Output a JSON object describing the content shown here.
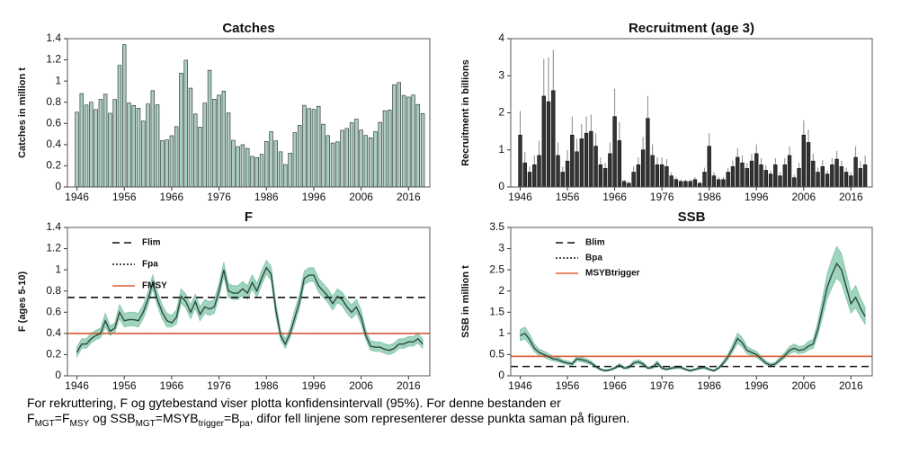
{
  "chart_data": [
    {
      "type": "bar",
      "title": "Catches",
      "y_label": "Catches in million t",
      "color": "#a8cfc0",
      "stroke": "#222222",
      "x": [
        1946,
        1947,
        1948,
        1949,
        1950,
        1951,
        1952,
        1953,
        1954,
        1955,
        1956,
        1957,
        1958,
        1959,
        1960,
        1961,
        1962,
        1963,
        1964,
        1965,
        1966,
        1967,
        1968,
        1969,
        1970,
        1971,
        1972,
        1973,
        1974,
        1975,
        1976,
        1977,
        1978,
        1979,
        1980,
        1981,
        1982,
        1983,
        1984,
        1985,
        1986,
        1987,
        1988,
        1989,
        1990,
        1991,
        1992,
        1993,
        1994,
        1995,
        1996,
        1997,
        1998,
        1999,
        2000,
        2001,
        2002,
        2003,
        2004,
        2005,
        2006,
        2007,
        2008,
        2009,
        2010,
        2011,
        2012,
        2013,
        2014,
        2015,
        2016,
        2017,
        2018,
        2019
      ],
      "values": [
        0.706,
        0.882,
        0.774,
        0.8,
        0.731,
        0.827,
        0.876,
        0.696,
        0.826,
        1.148,
        1.343,
        0.793,
        0.769,
        0.744,
        0.622,
        0.783,
        0.909,
        0.776,
        0.438,
        0.444,
        0.484,
        0.57,
        1.074,
        1.197,
        0.933,
        0.689,
        0.565,
        0.792,
        1.102,
        0.829,
        0.867,
        0.905,
        0.699,
        0.441,
        0.381,
        0.399,
        0.364,
        0.289,
        0.278,
        0.308,
        0.43,
        0.523,
        0.435,
        0.332,
        0.212,
        0.319,
        0.513,
        0.582,
        0.771,
        0.74,
        0.732,
        0.762,
        0.593,
        0.485,
        0.415,
        0.426,
        0.535,
        0.552,
        0.607,
        0.641,
        0.537,
        0.486,
        0.464,
        0.523,
        0.61,
        0.72,
        0.727,
        0.966,
        0.986,
        0.864,
        0.849,
        0.868,
        0.779,
        0.693
      ],
      "xlim": [
        1944,
        2020.5
      ],
      "xticks": [
        1946,
        1956,
        1966,
        1976,
        1986,
        1996,
        2006,
        2016
      ],
      "ylim": [
        0,
        1.4
      ],
      "yticks": [
        0,
        0.2,
        0.4,
        0.6,
        0.8,
        1,
        1.2,
        1.4
      ]
    },
    {
      "type": "bar",
      "title": "Recruitment (age 3)",
      "y_label": "Recruitment in billions",
      "color": "#333333",
      "stroke": "#111111",
      "error_color": "#888888",
      "x": [
        1946,
        1947,
        1948,
        1949,
        1950,
        1951,
        1952,
        1953,
        1954,
        1955,
        1956,
        1957,
        1958,
        1959,
        1960,
        1961,
        1962,
        1963,
        1964,
        1965,
        1966,
        1967,
        1968,
        1969,
        1970,
        1971,
        1972,
        1973,
        1974,
        1975,
        1976,
        1977,
        1978,
        1979,
        1980,
        1981,
        1982,
        1983,
        1984,
        1985,
        1986,
        1987,
        1988,
        1989,
        1990,
        1991,
        1992,
        1993,
        1994,
        1995,
        1996,
        1997,
        1998,
        1999,
        2000,
        2001,
        2002,
        2003,
        2004,
        2005,
        2006,
        2007,
        2008,
        2009,
        2010,
        2011,
        2012,
        2013,
        2014,
        2015,
        2016,
        2017,
        2018,
        2019
      ],
      "values": [
        1.4,
        0.65,
        0.4,
        0.6,
        0.85,
        2.45,
        2.3,
        2.6,
        0.85,
        0.4,
        0.7,
        1.4,
        0.95,
        1.3,
        1.45,
        1.5,
        1.1,
        0.6,
        0.5,
        0.9,
        1.9,
        1.25,
        0.15,
        0.1,
        0.4,
        0.6,
        1.0,
        1.85,
        0.85,
        0.6,
        0.6,
        0.55,
        0.3,
        0.2,
        0.15,
        0.15,
        0.15,
        0.2,
        0.1,
        0.4,
        1.1,
        0.3,
        0.2,
        0.2,
        0.4,
        0.55,
        0.8,
        0.65,
        0.5,
        0.7,
        0.9,
        0.6,
        0.45,
        0.35,
        0.6,
        0.3,
        0.6,
        0.85,
        0.25,
        0.5,
        1.4,
        1.2,
        0.7,
        0.4,
        0.55,
        0.35,
        0.6,
        0.75,
        0.55,
        0.4,
        0.3,
        0.8,
        0.5,
        0.6
      ],
      "errors": [
        0.65,
        0.3,
        0.15,
        0.25,
        0.4,
        1.0,
        1.2,
        1.1,
        0.35,
        0.15,
        0.3,
        0.5,
        0.35,
        0.4,
        0.45,
        0.45,
        0.35,
        0.2,
        0.15,
        0.3,
        0.75,
        0.5,
        0.05,
        0.05,
        0.15,
        0.2,
        0.35,
        0.6,
        0.3,
        0.2,
        0.2,
        0.2,
        0.1,
        0.07,
        0.05,
        0.05,
        0.05,
        0.07,
        0.04,
        0.12,
        0.35,
        0.1,
        0.07,
        0.07,
        0.12,
        0.17,
        0.25,
        0.2,
        0.15,
        0.2,
        0.25,
        0.18,
        0.14,
        0.1,
        0.18,
        0.1,
        0.18,
        0.25,
        0.08,
        0.15,
        0.4,
        0.35,
        0.2,
        0.12,
        0.17,
        0.1,
        0.18,
        0.22,
        0.16,
        0.12,
        0.1,
        0.3,
        0.2,
        0.25
      ],
      "xlim": [
        1944,
        2020.5
      ],
      "xticks": [
        1946,
        1956,
        1966,
        1976,
        1986,
        1996,
        2006,
        2016
      ],
      "ylim": [
        0,
        4
      ],
      "yticks": [
        0,
        1,
        2,
        3,
        4
      ]
    },
    {
      "type": "line",
      "title": "F",
      "y_label": "F (ages 5-10)",
      "color": "#2d4a3e",
      "band_color": "#9fd4be",
      "legend": "upper left",
      "x": [
        1946,
        1947,
        1948,
        1949,
        1950,
        1951,
        1952,
        1953,
        1954,
        1955,
        1956,
        1957,
        1958,
        1959,
        1960,
        1961,
        1962,
        1963,
        1964,
        1965,
        1966,
        1967,
        1968,
        1969,
        1970,
        1971,
        1972,
        1973,
        1974,
        1975,
        1976,
        1977,
        1978,
        1979,
        1980,
        1981,
        1982,
        1983,
        1984,
        1985,
        1986,
        1987,
        1988,
        1989,
        1990,
        1991,
        1992,
        1993,
        1994,
        1995,
        1996,
        1997,
        1998,
        1999,
        2000,
        2001,
        2002,
        2003,
        2004,
        2005,
        2006,
        2007,
        2008,
        2009,
        2010,
        2011,
        2012,
        2013,
        2014,
        2015,
        2016,
        2017,
        2018,
        2019
      ],
      "values": [
        0.22,
        0.3,
        0.3,
        0.35,
        0.38,
        0.4,
        0.52,
        0.42,
        0.45,
        0.6,
        0.52,
        0.53,
        0.53,
        0.52,
        0.6,
        0.72,
        0.88,
        0.72,
        0.6,
        0.52,
        0.5,
        0.55,
        0.75,
        0.7,
        0.6,
        0.7,
        0.58,
        0.65,
        0.63,
        0.65,
        0.8,
        1.0,
        0.8,
        0.78,
        0.78,
        0.82,
        0.78,
        0.88,
        0.8,
        0.92,
        1.02,
        0.96,
        0.62,
        0.38,
        0.3,
        0.4,
        0.55,
        0.7,
        0.92,
        0.95,
        0.95,
        0.85,
        0.8,
        0.75,
        0.68,
        0.75,
        0.72,
        0.65,
        0.6,
        0.65,
        0.55,
        0.38,
        0.28,
        0.27,
        0.27,
        0.25,
        0.24,
        0.26,
        0.3,
        0.3,
        0.32,
        0.32,
        0.35,
        0.3
      ],
      "upper": [
        0.27,
        0.35,
        0.35,
        0.4,
        0.43,
        0.45,
        0.59,
        0.47,
        0.5,
        0.67,
        0.59,
        0.6,
        0.6,
        0.59,
        0.67,
        0.79,
        0.95,
        0.79,
        0.67,
        0.59,
        0.57,
        0.62,
        0.82,
        0.77,
        0.67,
        0.77,
        0.65,
        0.72,
        0.7,
        0.72,
        0.87,
        1.07,
        0.87,
        0.85,
        0.85,
        0.89,
        0.85,
        0.95,
        0.87,
        0.99,
        1.09,
        1.03,
        0.69,
        0.43,
        0.35,
        0.45,
        0.62,
        0.77,
        0.99,
        1.02,
        1.02,
        0.92,
        0.87,
        0.82,
        0.75,
        0.82,
        0.79,
        0.72,
        0.67,
        0.72,
        0.62,
        0.43,
        0.33,
        0.32,
        0.32,
        0.3,
        0.29,
        0.31,
        0.35,
        0.35,
        0.37,
        0.37,
        0.4,
        0.35
      ],
      "lower": [
        0.18,
        0.26,
        0.26,
        0.31,
        0.34,
        0.36,
        0.46,
        0.38,
        0.41,
        0.54,
        0.46,
        0.47,
        0.47,
        0.46,
        0.54,
        0.66,
        0.82,
        0.66,
        0.54,
        0.46,
        0.46,
        0.49,
        0.69,
        0.64,
        0.54,
        0.64,
        0.52,
        0.59,
        0.57,
        0.59,
        0.74,
        0.94,
        0.74,
        0.72,
        0.72,
        0.76,
        0.72,
        0.82,
        0.74,
        0.86,
        0.96,
        0.9,
        0.56,
        0.34,
        0.26,
        0.36,
        0.49,
        0.64,
        0.86,
        0.89,
        0.89,
        0.79,
        0.74,
        0.69,
        0.62,
        0.69,
        0.66,
        0.59,
        0.54,
        0.59,
        0.49,
        0.34,
        0.24,
        0.23,
        0.23,
        0.21,
        0.2,
        0.22,
        0.26,
        0.26,
        0.28,
        0.28,
        0.31,
        0.26
      ],
      "ref_lines": [
        {
          "name": "Flim",
          "value": 0.74,
          "color": "#111111",
          "style": "dashed"
        },
        {
          "name": "Fpa",
          "value": 0.4,
          "color": "#111111",
          "style": "dotted"
        },
        {
          "name": "FMSY",
          "value": 0.4,
          "color": "#e0603a",
          "style": "solid"
        }
      ],
      "xlim": [
        1944,
        2020.5
      ],
      "xticks": [
        1946,
        1956,
        1966,
        1976,
        1986,
        1996,
        2006,
        2016
      ],
      "ylim": [
        0,
        1.4
      ],
      "yticks": [
        0,
        0.2,
        0.4,
        0.6,
        0.8,
        1,
        1.2,
        1.4
      ]
    },
    {
      "type": "line",
      "title": "SSB",
      "y_label": "SSB in million t",
      "color": "#2d4a3e",
      "band_color": "#9fd4be",
      "legend": "upper left",
      "x": [
        1946,
        1947,
        1948,
        1949,
        1950,
        1951,
        1952,
        1953,
        1954,
        1955,
        1956,
        1957,
        1958,
        1959,
        1960,
        1961,
        1962,
        1963,
        1964,
        1965,
        1966,
        1967,
        1968,
        1969,
        1970,
        1971,
        1972,
        1973,
        1974,
        1975,
        1976,
        1977,
        1978,
        1979,
        1980,
        1981,
        1982,
        1983,
        1984,
        1985,
        1986,
        1987,
        1988,
        1989,
        1990,
        1991,
        1992,
        1993,
        1994,
        1995,
        1996,
        1997,
        1998,
        1999,
        2000,
        2001,
        2002,
        2003,
        2004,
        2005,
        2006,
        2007,
        2008,
        2009,
        2010,
        2011,
        2012,
        2013,
        2014,
        2015,
        2016,
        2017,
        2018,
        2019
      ],
      "values": [
        0.95,
        1.0,
        0.85,
        0.65,
        0.55,
        0.5,
        0.45,
        0.4,
        0.38,
        0.33,
        0.3,
        0.28,
        0.4,
        0.38,
        0.35,
        0.3,
        0.22,
        0.15,
        0.12,
        0.14,
        0.18,
        0.25,
        0.18,
        0.2,
        0.3,
        0.33,
        0.28,
        0.18,
        0.2,
        0.3,
        0.18,
        0.15,
        0.18,
        0.2,
        0.2,
        0.15,
        0.12,
        0.15,
        0.18,
        0.2,
        0.15,
        0.12,
        0.18,
        0.3,
        0.45,
        0.65,
        0.88,
        0.78,
        0.6,
        0.55,
        0.5,
        0.4,
        0.3,
        0.25,
        0.28,
        0.38,
        0.48,
        0.6,
        0.65,
        0.6,
        0.62,
        0.7,
        0.75,
        1.1,
        1.6,
        2.1,
        2.4,
        2.65,
        2.5,
        2.1,
        1.7,
        1.85,
        1.6,
        1.4
      ],
      "upper": [
        1.09,
        1.15,
        0.98,
        0.75,
        0.63,
        0.58,
        0.52,
        0.46,
        0.44,
        0.38,
        0.35,
        0.32,
        0.46,
        0.44,
        0.4,
        0.35,
        0.25,
        0.17,
        0.14,
        0.16,
        0.21,
        0.29,
        0.21,
        0.23,
        0.35,
        0.38,
        0.32,
        0.21,
        0.23,
        0.35,
        0.21,
        0.17,
        0.21,
        0.23,
        0.23,
        0.17,
        0.14,
        0.17,
        0.21,
        0.23,
        0.17,
        0.14,
        0.21,
        0.35,
        0.52,
        0.75,
        1.01,
        0.9,
        0.69,
        0.63,
        0.58,
        0.46,
        0.35,
        0.29,
        0.32,
        0.44,
        0.55,
        0.69,
        0.75,
        0.69,
        0.71,
        0.81,
        0.86,
        1.27,
        1.84,
        2.42,
        2.76,
        3.05,
        2.88,
        2.42,
        1.96,
        2.13,
        1.84,
        1.61
      ],
      "lower": [
        0.83,
        0.87,
        0.74,
        0.57,
        0.48,
        0.44,
        0.39,
        0.35,
        0.33,
        0.29,
        0.26,
        0.24,
        0.35,
        0.33,
        0.3,
        0.26,
        0.19,
        0.13,
        0.1,
        0.12,
        0.16,
        0.22,
        0.16,
        0.17,
        0.26,
        0.29,
        0.24,
        0.16,
        0.17,
        0.26,
        0.16,
        0.13,
        0.16,
        0.17,
        0.17,
        0.13,
        0.1,
        0.13,
        0.16,
        0.17,
        0.13,
        0.1,
        0.16,
        0.26,
        0.39,
        0.57,
        0.77,
        0.68,
        0.52,
        0.48,
        0.44,
        0.35,
        0.26,
        0.22,
        0.24,
        0.33,
        0.42,
        0.52,
        0.57,
        0.52,
        0.54,
        0.61,
        0.65,
        0.96,
        1.39,
        1.83,
        2.09,
        2.31,
        2.18,
        1.83,
        1.48,
        1.61,
        1.39,
        1.22
      ],
      "ref_lines": [
        {
          "name": "Blim",
          "value": 0.22,
          "color": "#111111",
          "style": "dashed"
        },
        {
          "name": "Bpa",
          "value": 0.46,
          "color": "#111111",
          "style": "dotted"
        },
        {
          "name": "MSYBtrigger",
          "value": 0.46,
          "color": "#e0603a",
          "style": "solid"
        }
      ],
      "xlim": [
        1944,
        2020.5
      ],
      "xticks": [
        1946,
        1956,
        1966,
        1976,
        1986,
        1996,
        2006,
        2016
      ],
      "ylim": [
        0,
        3.5
      ],
      "yticks": [
        0,
        0.5,
        1,
        1.5,
        2,
        2.5,
        3,
        3.5
      ]
    }
  ],
  "caption": {
    "parts": [
      "For rekruttering, F og gytebestand viser plotta konfidensintervall (95%). For denne bestanden er",
      "F",
      "MGT",
      "=F",
      "MSY",
      " og SSB",
      "MGT",
      "=MSYB",
      "trigger",
      "=B",
      "pa",
      ", difor fell linjene som representerer desse punkta saman på figuren."
    ]
  }
}
